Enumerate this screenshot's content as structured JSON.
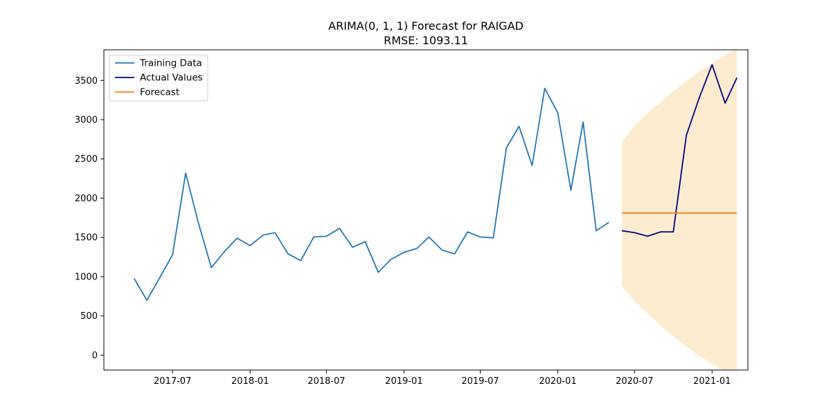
{
  "chart_data": {
    "type": "line",
    "title": "ARIMA(0, 1, 1) Forecast for RAIGAD",
    "subtitle": "RMSE: 1093.11",
    "xlabel": "",
    "ylabel": "",
    "xlim": [
      "2017-01-19",
      "2021-03-27"
    ],
    "ylim": [
      -190,
      3890
    ],
    "x_ticks": [
      "2017-07",
      "2018-01",
      "2018-07",
      "2019-01",
      "2019-07",
      "2020-01",
      "2020-07",
      "2021-01"
    ],
    "y_ticks": [
      0,
      500,
      1000,
      1500,
      2000,
      2500,
      3000,
      3500
    ],
    "grid": false,
    "legend_position": "top-left",
    "series": [
      {
        "name": "Training Data",
        "color": "#1f77b4",
        "x": [
          "2017-04-01",
          "2017-05-01",
          "2017-06-01",
          "2017-07-01",
          "2017-08-01",
          "2017-09-01",
          "2017-10-01",
          "2017-11-01",
          "2017-12-01",
          "2018-01-01",
          "2018-02-01",
          "2018-03-01",
          "2018-04-01",
          "2018-05-01",
          "2018-06-01",
          "2018-07-01",
          "2018-08-01",
          "2018-09-01",
          "2018-10-01",
          "2018-11-01",
          "2018-12-01",
          "2019-01-01",
          "2019-02-01",
          "2019-03-01",
          "2019-04-01",
          "2019-05-01",
          "2019-06-01",
          "2019-07-01",
          "2019-08-01",
          "2019-09-01",
          "2019-10-01",
          "2019-11-01",
          "2019-12-01",
          "2020-01-01",
          "2020-02-01",
          "2020-03-01",
          "2020-04-01",
          "2020-05-01"
        ],
        "values": [
          975,
          700,
          990,
          1280,
          2320,
          1670,
          1115,
          1320,
          1490,
          1395,
          1530,
          1560,
          1290,
          1205,
          1505,
          1515,
          1615,
          1375,
          1445,
          1055,
          1220,
          1310,
          1360,
          1505,
          1340,
          1290,
          1570,
          1505,
          1495,
          2640,
          2915,
          2415,
          3400,
          3085,
          2100,
          2970,
          1585,
          1690
        ]
      },
      {
        "name": "Actual Values",
        "color": "#000080",
        "x": [
          "2020-06-01",
          "2020-07-01",
          "2020-08-01",
          "2020-09-01",
          "2020-10-01",
          "2020-11-01",
          "2020-12-01",
          "2021-01-01",
          "2021-02-01",
          "2021-03-01"
        ],
        "values": [
          1585,
          1560,
          1515,
          1570,
          1570,
          2800,
          3270,
          3700,
          3210,
          3535
        ]
      },
      {
        "name": "Forecast",
        "color": "#ff7f0e",
        "x": [
          "2020-06-01",
          "2020-07-01",
          "2020-08-01",
          "2020-09-01",
          "2020-10-01",
          "2020-11-01",
          "2020-12-01",
          "2021-01-01",
          "2021-02-01",
          "2021-03-01"
        ],
        "values": [
          1810,
          1810,
          1810,
          1810,
          1810,
          1810,
          1810,
          1810,
          1810,
          1810
        ]
      }
    ],
    "confidence_interval": {
      "color": "#fdebd0",
      "x": [
        "2020-06-01",
        "2020-07-01",
        "2020-08-01",
        "2020-09-01",
        "2020-10-01",
        "2020-11-01",
        "2020-12-01",
        "2021-01-01",
        "2021-02-01",
        "2021-03-01"
      ],
      "lower": [
        880,
        690,
        525,
        375,
        240,
        110,
        -10,
        -110,
        -200,
        -290
      ],
      "upper": [
        2720,
        2920,
        3085,
        3225,
        3360,
        3490,
        3610,
        3720,
        3820,
        3910
      ]
    }
  }
}
